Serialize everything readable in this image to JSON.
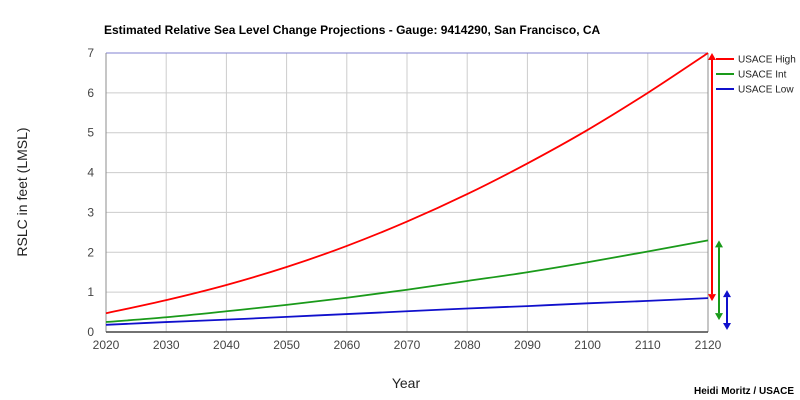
{
  "chart_data": {
    "type": "line",
    "title": "Estimated Relative Sea Level Change Projections - Gauge: 9414290, San Francisco, CA",
    "xlabel": "Year",
    "ylabel": "RSLC in feet (LMSL)",
    "xlim": [
      2020,
      2120
    ],
    "ylim": [
      0,
      7
    ],
    "x_ticks": [
      "2020",
      "2030",
      "2040",
      "2050",
      "2060",
      "2070",
      "2080",
      "2090",
      "2100",
      "2110",
      "2120"
    ],
    "y_ticks": [
      "0",
      "1",
      "2",
      "3",
      "4",
      "5",
      "6",
      "7"
    ],
    "grid": true,
    "legend_position": "right",
    "x": [
      2020,
      2030,
      2040,
      2050,
      2060,
      2070,
      2080,
      2090,
      2100,
      2110,
      2120
    ],
    "series": [
      {
        "name": "USACE High",
        "color": "#ff0000",
        "values": [
          0.47,
          0.8,
          1.18,
          1.63,
          2.16,
          2.77,
          3.46,
          4.23,
          5.07,
          6.0,
          7.0
        ]
      },
      {
        "name": "USACE Int",
        "color": "#1a9a1a",
        "values": [
          0.25,
          0.37,
          0.52,
          0.68,
          0.86,
          1.06,
          1.28,
          1.5,
          1.75,
          2.02,
          2.3
        ]
      },
      {
        "name": "USACE Low",
        "color": "#1010cc",
        "values": [
          0.18,
          0.25,
          0.31,
          0.38,
          0.45,
          0.52,
          0.59,
          0.65,
          0.72,
          0.78,
          0.85
        ]
      }
    ]
  },
  "credit": "Heidi Moritz / USACE"
}
